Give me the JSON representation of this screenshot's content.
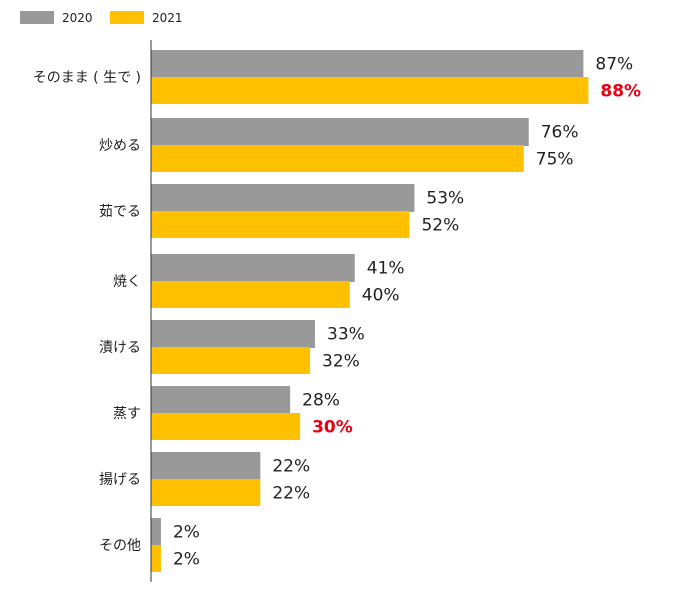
{
  "colors": {
    "series_2020": "#999999",
    "series_2021": "#ffc000",
    "highlight_text": "#e60012",
    "axis": "#333333"
  },
  "chart_data": {
    "type": "bar",
    "orientation": "horizontal",
    "categories": [
      "そのまま ( 生で )",
      "炒める",
      "茹でる",
      "焼く",
      "漬ける",
      "蒸す",
      "揚げる",
      "その他"
    ],
    "series": [
      {
        "name": "2020",
        "values": [
          87,
          76,
          53,
          41,
          33,
          28,
          22,
          2
        ],
        "labels": [
          "87%",
          "76%",
          "53%",
          "41%",
          "33%",
          "28%",
          "22%",
          "2%"
        ]
      },
      {
        "name": "2021",
        "values": [
          88,
          75,
          52,
          40,
          32,
          30,
          22,
          2
        ],
        "labels": [
          "88%",
          "75%",
          "52%",
          "40%",
          "32%",
          "30%",
          "22%",
          "2%"
        ],
        "highlighted_indices": [
          0,
          5
        ]
      }
    ],
    "xlim": [
      0,
      100
    ],
    "legend": "top-left",
    "grid": false
  }
}
